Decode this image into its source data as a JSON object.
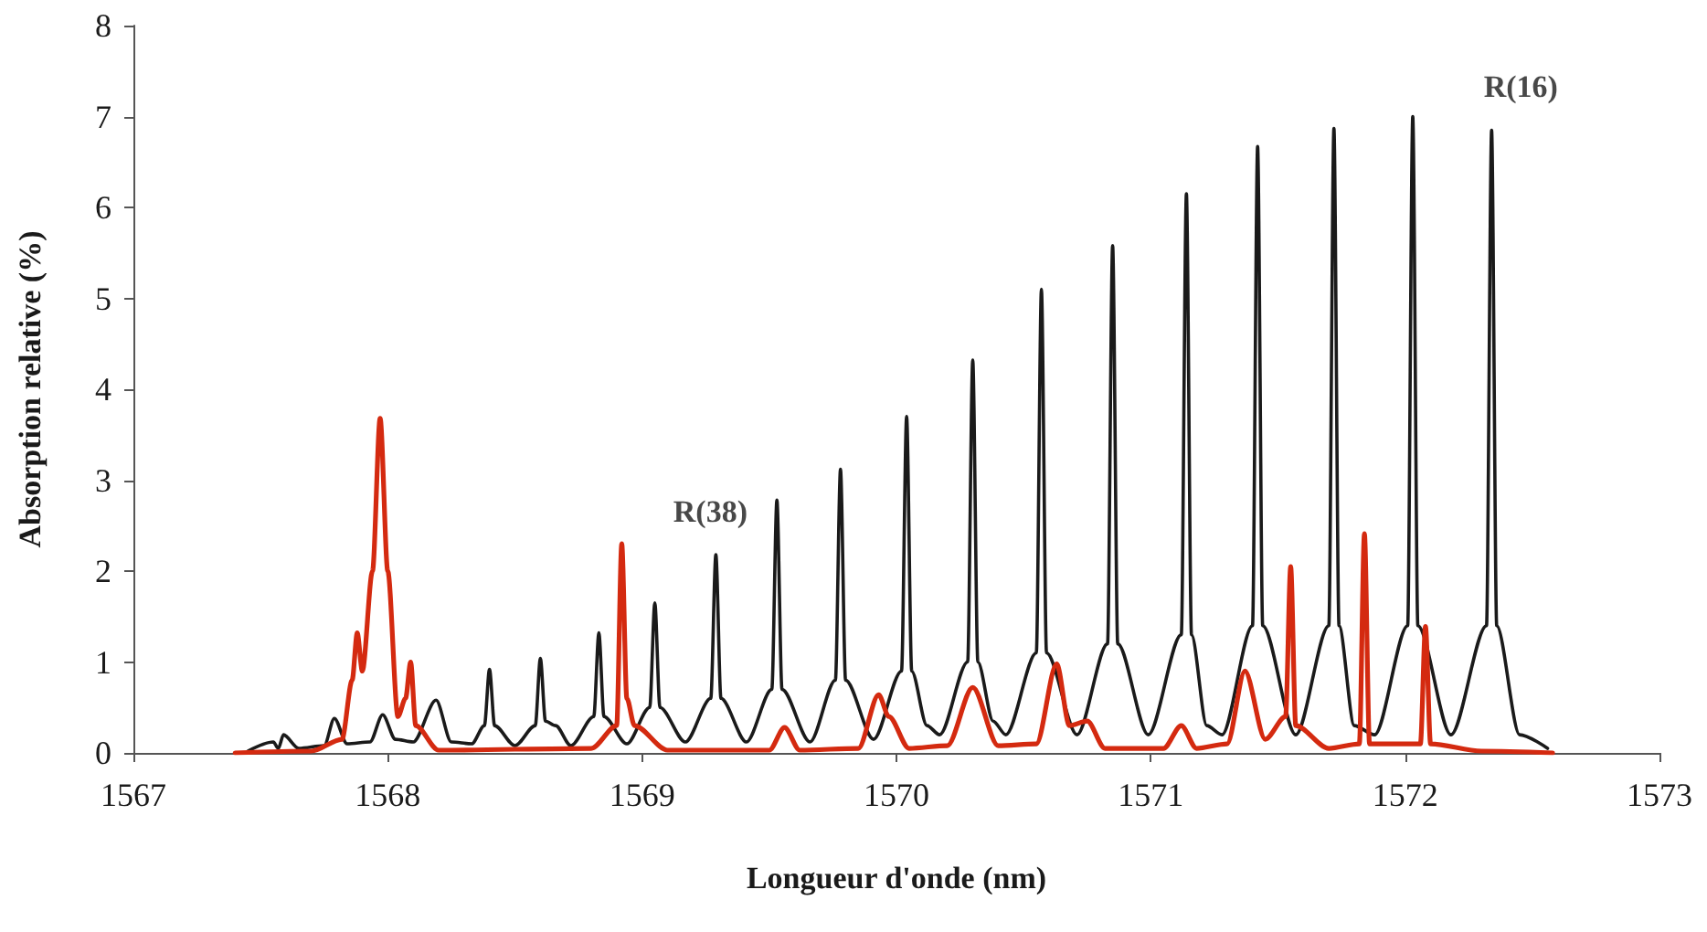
{
  "chart_data": {
    "type": "line",
    "xlabel": "Longueur d'onde (nm)",
    "ylabel": "Absorption relative (%)",
    "xlim": [
      1567,
      1573
    ],
    "xticks": [
      1567,
      1568,
      1569,
      1570,
      1571,
      1572,
      1573
    ],
    "ylim": [
      0,
      8
    ],
    "yticks": [
      0,
      1,
      2,
      3,
      4,
      5,
      6,
      7,
      8
    ],
    "grid": false,
    "marker": "none",
    "line_style": "solid",
    "annotations": [
      {
        "text": "R(38)",
        "x": 1569.29,
        "y": 2.18
      },
      {
        "text": "R(16)",
        "x": 1572.34,
        "y": 6.85
      }
    ],
    "series": [
      {
        "color": "#1a1a1a",
        "x": [
          1567.45,
          1567.55,
          1567.57,
          1567.59,
          1567.65,
          1567.75,
          1567.79,
          1567.84,
          1567.93,
          1567.98,
          1568.03,
          1568.1,
          1568.19,
          1568.25,
          1568.33,
          1568.38,
          1568.4,
          1568.42,
          1568.5,
          1568.58,
          1568.6,
          1568.62,
          1568.66,
          1568.72,
          1568.81,
          1568.83,
          1568.85,
          1568.94,
          1569.03,
          1569.05,
          1569.07,
          1569.17,
          1569.27,
          1569.29,
          1569.31,
          1569.41,
          1569.51,
          1569.53,
          1569.55,
          1569.66,
          1569.76,
          1569.78,
          1569.8,
          1569.91,
          1570.02,
          1570.04,
          1570.06,
          1570.12,
          1570.17,
          1570.28,
          1570.3,
          1570.32,
          1570.38,
          1570.43,
          1570.55,
          1570.57,
          1570.59,
          1570.71,
          1570.83,
          1570.85,
          1570.87,
          1570.99,
          1571.12,
          1571.14,
          1571.16,
          1571.22,
          1571.28,
          1571.4,
          1571.42,
          1571.44,
          1571.57,
          1571.7,
          1571.72,
          1571.74,
          1571.8,
          1571.88,
          1572.01,
          1572.03,
          1572.05,
          1572.18,
          1572.32,
          1572.34,
          1572.36,
          1572.45,
          1572.56
        ],
        "values": [
          0.02,
          0.12,
          0.05,
          0.2,
          0.05,
          0.08,
          0.38,
          0.1,
          0.12,
          0.42,
          0.15,
          0.12,
          0.58,
          0.12,
          0.1,
          0.3,
          0.92,
          0.3,
          0.08,
          0.3,
          1.04,
          0.35,
          0.3,
          0.08,
          0.4,
          1.32,
          0.4,
          0.1,
          0.5,
          1.65,
          0.5,
          0.12,
          0.6,
          2.18,
          0.6,
          0.12,
          0.7,
          2.78,
          0.7,
          0.12,
          0.8,
          3.12,
          0.8,
          0.15,
          0.9,
          3.7,
          0.9,
          0.3,
          0.2,
          1.0,
          4.32,
          1.0,
          0.35,
          0.2,
          1.1,
          5.1,
          1.1,
          0.2,
          1.2,
          5.58,
          1.2,
          0.2,
          1.3,
          6.15,
          1.3,
          0.3,
          0.2,
          1.4,
          6.67,
          1.4,
          0.2,
          1.4,
          6.87,
          1.4,
          0.3,
          0.2,
          1.4,
          7.0,
          1.4,
          0.2,
          1.4,
          6.85,
          1.4,
          0.2,
          0.05
        ]
      },
      {
        "color": "#d42a10",
        "x": [
          1567.4,
          1567.7,
          1567.82,
          1567.86,
          1567.88,
          1567.9,
          1567.94,
          1567.97,
          1568.0,
          1568.04,
          1568.07,
          1568.09,
          1568.11,
          1568.2,
          1568.8,
          1568.9,
          1568.92,
          1568.94,
          1568.97,
          1569.1,
          1569.5,
          1569.56,
          1569.62,
          1569.85,
          1569.93,
          1569.97,
          1570.05,
          1570.2,
          1570.3,
          1570.4,
          1570.55,
          1570.63,
          1570.68,
          1570.75,
          1570.82,
          1571.05,
          1571.12,
          1571.18,
          1571.3,
          1571.37,
          1571.45,
          1571.53,
          1571.55,
          1571.57,
          1571.7,
          1571.82,
          1571.84,
          1571.86,
          1572.06,
          1572.08,
          1572.1,
          1572.3,
          1572.58
        ],
        "values": [
          0,
          0.02,
          0.15,
          0.8,
          1.32,
          0.9,
          2.0,
          3.68,
          2.0,
          0.4,
          0.6,
          1.0,
          0.3,
          0.03,
          0.05,
          0.3,
          2.3,
          0.6,
          0.3,
          0.03,
          0.03,
          0.28,
          0.03,
          0.05,
          0.64,
          0.4,
          0.05,
          0.08,
          0.72,
          0.08,
          0.1,
          0.98,
          0.3,
          0.35,
          0.05,
          0.05,
          0.3,
          0.05,
          0.1,
          0.9,
          0.15,
          0.4,
          2.05,
          0.3,
          0.05,
          0.1,
          2.41,
          0.1,
          0.1,
          1.39,
          0.1,
          0.02,
          0
        ]
      }
    ]
  }
}
